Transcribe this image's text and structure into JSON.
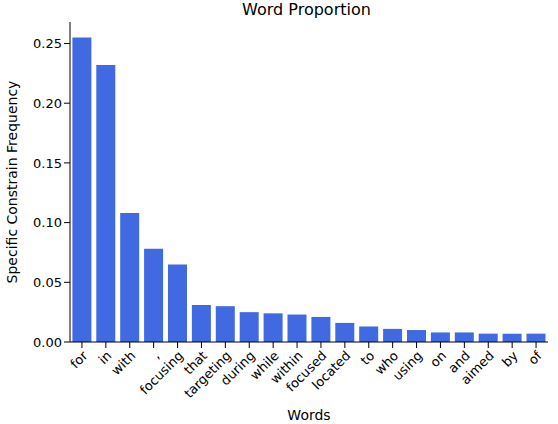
{
  "chart_data": {
    "type": "bar",
    "title": "Word Proportion",
    "x_label": "Words",
    "y_label": "Specific Constrain Frequency",
    "categories": [
      "for",
      "in",
      "with",
      ",",
      "focusing",
      "that",
      "targeting",
      "during",
      "while",
      "within",
      "focused",
      "located",
      "to",
      "who",
      "using",
      "on",
      "and",
      "aimed",
      "by",
      "of"
    ],
    "values": [
      0.255,
      0.232,
      0.108,
      0.078,
      0.065,
      0.031,
      0.03,
      0.025,
      0.024,
      0.023,
      0.021,
      0.016,
      0.013,
      0.011,
      0.01,
      0.008,
      0.008,
      0.007,
      0.007,
      0.007
    ],
    "color": "#4169e1",
    "ylim": [
      0,
      0.268
    ],
    "yticks": [
      {
        "value": 0,
        "label": "0.00"
      },
      {
        "value": 0.05,
        "label": "0.05"
      },
      {
        "value": 0.1,
        "label": "0.10"
      },
      {
        "value": 0.15,
        "label": "0.15"
      },
      {
        "value": 0.2,
        "label": "0.20"
      },
      {
        "value": 0.25,
        "label": "0.25"
      }
    ],
    "grid": false
  }
}
